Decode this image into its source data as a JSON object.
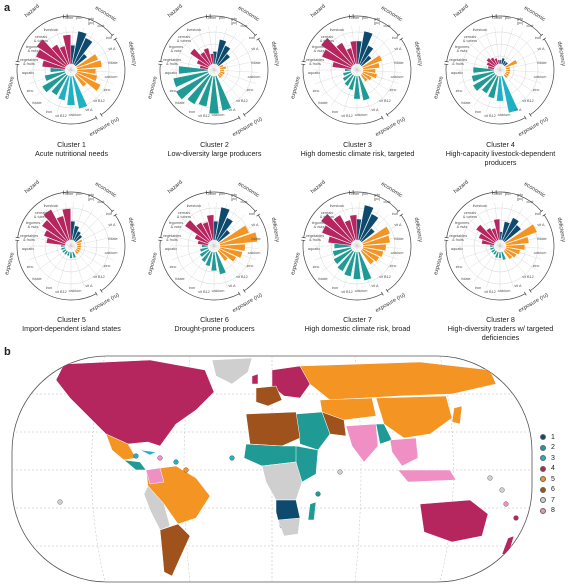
{
  "panel_a_label": "a",
  "panel_b_label": "b",
  "colors": {
    "hazard": "#b5255e",
    "economic": "#0d4a6e",
    "deficiency": "#f39423",
    "exposure": "#1f9a94",
    "exposure_light": "#1fb0c4",
    "ring": "#444444",
    "grid": "#c8c8c8"
  },
  "groups": {
    "hazard": "hazard",
    "economic": "economic",
    "deficiency": "deficiency",
    "exposure": "exposure",
    "exposure_flip": "exposure (ru)"
  },
  "spoke_labels": [
    "other",
    "pov",
    "gdp",
    "(pc)",
    "cost",
    "iron",
    "vit A",
    "folate",
    "calcium",
    "zinc",
    "vit B12",
    "vit A",
    "calcium",
    "vit B12",
    "iron",
    "folate",
    "zinc",
    "aquatic",
    "vegetables",
    "& fruits",
    "legumes",
    "& nuts",
    "cereals",
    "& tubers",
    "livestock"
  ],
  "clusters": [
    {
      "title": "Cluster 1",
      "subtitle": "Acute nutritional needs"
    },
    {
      "title": "Cluster 2",
      "subtitle": "Low-diversity large producers"
    },
    {
      "title": "Cluster 3",
      "subtitle": "High domestic climate risk, targeted"
    },
    {
      "title": "Cluster 4",
      "subtitle": "High-capacity livestock-dependent producers"
    },
    {
      "title": "Cluster 5",
      "subtitle": "Import-dependent island states"
    },
    {
      "title": "Cluster 6",
      "subtitle": "Drought-prone producers"
    },
    {
      "title": "Cluster 7",
      "subtitle": "High domestic climate risk, broad"
    },
    {
      "title": "Cluster 8",
      "subtitle": "High-diversity traders w/ targeted deficiencies"
    }
  ],
  "cluster_profiles": [
    {
      "hazard": [
        0.55,
        0.75,
        0.85,
        0.55,
        0.45,
        0.7
      ],
      "economic": [
        0.45,
        0.8,
        0.7,
        0.35
      ],
      "deficiency": [
        0.55,
        0.6,
        0.45,
        0.5,
        0.65,
        0.35
      ],
      "exposure": [
        0.8,
        0.7,
        0.6,
        0.55,
        0.65,
        0.5,
        0.35
      ]
    },
    {
      "hazard": [
        0.2,
        0.3,
        0.55,
        0.35,
        0.4,
        0.25
      ],
      "economic": [
        0.3,
        0.6,
        0.5,
        0.35
      ],
      "deficiency": [
        0.1,
        0.15,
        0.1,
        0.12,
        0.1,
        0.1
      ],
      "exposure": [
        0.85,
        0.9,
        0.75,
        0.8,
        0.9,
        0.85,
        0.7
      ]
    },
    {
      "hazard": [
        0.45,
        0.75,
        0.9,
        0.6,
        0.4,
        0.55
      ],
      "economic": [
        0.55,
        0.8,
        0.5,
        0.3
      ],
      "deficiency": [
        0.5,
        0.4,
        0.3,
        0.35,
        0.25,
        0.2
      ],
      "exposure": [
        0.6,
        0.55,
        0.35,
        0.3,
        0.25,
        0.2,
        0.15
      ]
    },
    {
      "hazard": [
        0.15,
        0.2,
        0.25,
        0.2,
        0.15,
        0.1
      ],
      "economic": [
        0.1,
        0.15,
        0.1,
        0.1
      ],
      "deficiency": [
        0.3,
        0.1,
        0.1,
        0.1,
        0.1,
        0.1
      ],
      "exposure": [
        0.9,
        0.6,
        0.55,
        0.5,
        0.6,
        0.55,
        0.5
      ]
    },
    {
      "hazard": [
        0.45,
        0.55,
        0.7,
        0.85,
        0.6,
        0.75
      ],
      "economic": [
        0.45,
        0.35,
        0.25,
        0.2
      ],
      "deficiency": [
        0.15,
        0.1,
        0.1,
        0.1,
        0.1,
        0.1
      ],
      "exposure": [
        0.15,
        0.15,
        0.1,
        0.1,
        0.1,
        0.1,
        0.1
      ]
    },
    {
      "hazard": [
        0.25,
        0.35,
        0.7,
        0.5,
        0.45,
        0.6
      ],
      "economic": [
        0.45,
        0.8,
        0.6,
        0.35
      ],
      "deficiency": [
        0.75,
        0.9,
        0.6,
        0.55,
        0.45,
        0.3
      ],
      "exposure": [
        0.55,
        0.45,
        0.35,
        0.3,
        0.25,
        0.2,
        0.15
      ]
    },
    {
      "hazard": [
        0.55,
        0.75,
        0.9,
        0.7,
        0.5,
        0.6
      ],
      "economic": [
        0.5,
        0.85,
        0.7,
        0.4
      ],
      "deficiency": [
        0.7,
        0.65,
        0.55,
        0.5,
        0.45,
        0.4
      ],
      "exposure": [
        0.7,
        0.65,
        0.6,
        0.55,
        0.5,
        0.45,
        0.4
      ]
    },
    {
      "hazard": [
        0.3,
        0.4,
        0.55,
        0.35,
        0.3,
        0.5
      ],
      "economic": [
        0.2,
        0.45,
        0.6,
        0.5
      ],
      "deficiency": [
        0.8,
        0.55,
        0.45,
        0.35,
        0.3,
        0.25
      ],
      "exposure": [
        0.2,
        0.15,
        0.15,
        0.1,
        0.1,
        0.1,
        0.1
      ]
    }
  ],
  "map_legend": [
    {
      "label": "1",
      "color": "#0d4a6e"
    },
    {
      "label": "2",
      "color": "#1f9a94"
    },
    {
      "label": "3",
      "color": "#1fb0c4"
    },
    {
      "label": "4",
      "color": "#b5255e"
    },
    {
      "label": "5",
      "color": "#f39423"
    },
    {
      "label": "6",
      "color": "#a0521c"
    },
    {
      "label": "7",
      "color": "#cfcfcf"
    },
    {
      "label": "8",
      "color": "#ef8fc3"
    }
  ]
}
